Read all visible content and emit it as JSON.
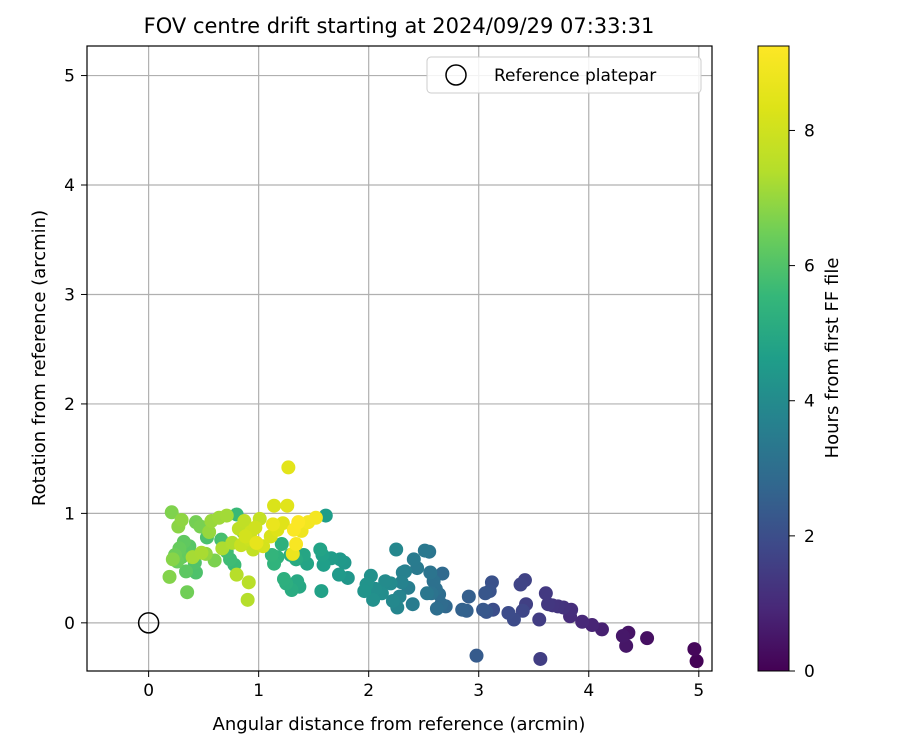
{
  "chart_data": {
    "type": "scatter",
    "title": "FOV centre drift starting at 2024/09/29 07:33:31",
    "xlabel": "Angular distance from reference (arcmin)",
    "ylabel": "Rotation from reference (arcmin)",
    "colorbar_label": "Hours from first FF file",
    "xlim": [
      -0.56,
      5.12
    ],
    "ylim": [
      -0.44,
      5.27
    ],
    "clim": [
      0,
      9.25
    ],
    "colormap": "viridis",
    "grid": true,
    "legend_position": "top-right",
    "x_ticks": [
      0,
      1,
      2,
      3,
      4,
      5
    ],
    "y_ticks": [
      0,
      1,
      2,
      3,
      4,
      5
    ],
    "colorbar_ticks": [
      0,
      2,
      4,
      6,
      8
    ],
    "reference_point": {
      "name": "Reference platepar",
      "x": 0,
      "y": 0,
      "marker": "open-circle"
    },
    "series": [
      {
        "points": [
          [
            4.98,
            -0.35,
            0.05
          ],
          [
            4.96,
            -0.24,
            0.15
          ],
          [
            4.53,
            -0.14,
            0.35
          ],
          [
            4.36,
            -0.09,
            0.45
          ],
          [
            4.34,
            -0.21,
            0.5
          ],
          [
            4.31,
            -0.12,
            0.55
          ],
          [
            4.12,
            -0.06,
            0.75
          ],
          [
            4.03,
            -0.02,
            0.85
          ],
          [
            3.94,
            0.01,
            0.95
          ],
          [
            3.83,
            0.06,
            1.05
          ],
          [
            3.84,
            0.12,
            1.1
          ],
          [
            3.77,
            0.14,
            1.2
          ],
          [
            3.72,
            0.15,
            1.25
          ],
          [
            3.67,
            0.16,
            1.3
          ],
          [
            3.63,
            0.17,
            1.35
          ],
          [
            3.61,
            0.27,
            1.4
          ],
          [
            3.55,
            0.03,
            1.5
          ],
          [
            3.56,
            -0.33,
            1.55
          ],
          [
            3.43,
            0.17,
            1.6
          ],
          [
            3.42,
            0.39,
            1.65
          ],
          [
            3.38,
            0.35,
            1.7
          ],
          [
            3.4,
            0.11,
            1.8
          ],
          [
            3.32,
            0.03,
            1.9
          ],
          [
            3.27,
            0.09,
            1.95
          ],
          [
            3.13,
            0.12,
            2.0
          ],
          [
            3.12,
            0.37,
            2.1
          ],
          [
            3.1,
            0.29,
            2.15
          ],
          [
            3.07,
            0.1,
            2.2
          ],
          [
            3.06,
            0.27,
            2.25
          ],
          [
            3.04,
            0.12,
            2.3
          ],
          [
            2.98,
            -0.3,
            2.4
          ],
          [
            2.91,
            0.24,
            2.5
          ],
          [
            2.89,
            0.11,
            2.55
          ],
          [
            2.85,
            0.12,
            2.6
          ],
          [
            2.7,
            0.15,
            2.8
          ],
          [
            2.67,
            0.45,
            2.85
          ],
          [
            2.66,
            0.17,
            2.9
          ],
          [
            2.64,
            0.26,
            2.95
          ],
          [
            2.62,
            0.13,
            3.0
          ],
          [
            2.61,
            0.31,
            3.05
          ],
          [
            2.59,
            0.38,
            3.1
          ],
          [
            2.57,
            0.27,
            3.15
          ],
          [
            2.56,
            0.46,
            3.2
          ],
          [
            2.55,
            0.65,
            3.25
          ],
          [
            2.53,
            0.27,
            3.3
          ],
          [
            2.51,
            0.66,
            3.35
          ],
          [
            2.44,
            0.5,
            3.4
          ],
          [
            2.41,
            0.58,
            3.45
          ],
          [
            2.4,
            0.17,
            3.5
          ],
          [
            2.36,
            0.32,
            3.55
          ],
          [
            2.33,
            0.47,
            3.6
          ],
          [
            2.31,
            0.46,
            3.65
          ],
          [
            2.3,
            0.37,
            3.7
          ],
          [
            2.28,
            0.24,
            3.75
          ],
          [
            2.26,
            0.14,
            3.8
          ],
          [
            2.25,
            0.67,
            3.85
          ],
          [
            2.22,
            0.2,
            3.9
          ],
          [
            2.2,
            0.36,
            3.95
          ],
          [
            2.15,
            0.38,
            4.0
          ],
          [
            2.12,
            0.27,
            4.05
          ],
          [
            2.06,
            0.31,
            4.1
          ],
          [
            2.04,
            0.21,
            4.15
          ],
          [
            2.02,
            0.43,
            4.2
          ],
          [
            1.98,
            0.35,
            4.25
          ],
          [
            1.96,
            0.29,
            4.3
          ],
          [
            1.81,
            0.41,
            4.35
          ],
          [
            1.78,
            0.55,
            4.4
          ],
          [
            1.74,
            0.58,
            4.45
          ],
          [
            1.73,
            0.44,
            4.5
          ],
          [
            1.66,
            0.59,
            4.55
          ],
          [
            1.61,
            0.98,
            4.6
          ],
          [
            1.59,
            0.53,
            4.65
          ],
          [
            1.58,
            0.62,
            4.7
          ],
          [
            1.57,
            0.29,
            4.75
          ],
          [
            1.56,
            0.67,
            4.8
          ],
          [
            1.44,
            0.54,
            4.85
          ],
          [
            1.41,
            0.62,
            4.9
          ],
          [
            1.37,
            0.33,
            4.95
          ],
          [
            1.35,
            0.38,
            5.0
          ],
          [
            1.34,
            0.58,
            5.05
          ],
          [
            1.3,
            0.3,
            5.1
          ],
          [
            1.29,
            0.62,
            5.15
          ],
          [
            1.25,
            0.36,
            5.2
          ],
          [
            1.23,
            0.4,
            5.25
          ],
          [
            1.21,
            0.72,
            5.3
          ],
          [
            1.17,
            0.6,
            5.35
          ],
          [
            1.14,
            0.54,
            5.4
          ],
          [
            1.12,
            0.62,
            5.45
          ],
          [
            0.89,
            0.73,
            5.5
          ],
          [
            0.86,
            0.83,
            5.55
          ],
          [
            0.8,
            0.99,
            5.6
          ],
          [
            0.78,
            0.53,
            5.65
          ],
          [
            0.74,
            0.58,
            5.7
          ],
          [
            0.71,
            0.65,
            5.75
          ],
          [
            0.69,
            0.69,
            5.8
          ],
          [
            0.66,
            0.76,
            5.85
          ],
          [
            0.53,
            0.78,
            5.9
          ],
          [
            0.43,
            0.46,
            5.95
          ],
          [
            0.42,
            0.55,
            6.0
          ],
          [
            0.4,
            0.62,
            6.05
          ],
          [
            0.37,
            0.7,
            6.1
          ],
          [
            0.35,
            0.66,
            6.15
          ],
          [
            0.34,
            0.47,
            6.2
          ],
          [
            0.32,
            0.74,
            6.25
          ],
          [
            0.3,
            0.6,
            6.3
          ],
          [
            0.28,
            0.68,
            6.35
          ],
          [
            0.26,
            0.56,
            6.4
          ],
          [
            0.24,
            0.62,
            6.45
          ],
          [
            0.35,
            0.28,
            6.5
          ],
          [
            0.43,
            0.92,
            6.55
          ],
          [
            0.47,
            0.88,
            6.6
          ],
          [
            0.6,
            0.57,
            6.65
          ],
          [
            0.21,
            1.01,
            6.7
          ],
          [
            0.19,
            0.42,
            6.75
          ],
          [
            0.22,
            0.58,
            6.8
          ],
          [
            0.27,
            0.88,
            6.85
          ],
          [
            0.3,
            0.94,
            6.9
          ],
          [
            0.52,
            0.63,
            6.95
          ],
          [
            0.55,
            0.83,
            7.0
          ],
          [
            0.57,
            0.93,
            7.05
          ],
          [
            0.64,
            0.96,
            7.1
          ],
          [
            0.71,
            0.98,
            7.15
          ],
          [
            0.4,
            0.6,
            7.2
          ],
          [
            0.48,
            0.64,
            7.25
          ],
          [
            0.67,
            0.68,
            7.3
          ],
          [
            0.76,
            0.73,
            7.35
          ],
          [
            0.9,
            0.21,
            7.4
          ],
          [
            0.8,
            0.44,
            7.45
          ],
          [
            0.91,
            0.37,
            7.5
          ],
          [
            0.82,
            0.86,
            7.6
          ],
          [
            0.87,
            0.93,
            7.65
          ],
          [
            0.95,
            0.67,
            7.7
          ],
          [
            1.01,
            0.95,
            7.75
          ],
          [
            0.84,
            0.71,
            7.85
          ],
          [
            0.92,
            0.76,
            7.9
          ],
          [
            0.93,
            0.83,
            7.95
          ],
          [
            0.97,
            0.87,
            8.0
          ],
          [
            0.88,
            0.79,
            8.1
          ],
          [
            1.04,
            0.7,
            8.15
          ],
          [
            1.11,
            0.79,
            8.2
          ],
          [
            1.14,
            1.07,
            8.25
          ],
          [
            1.17,
            0.85,
            8.35
          ],
          [
            1.22,
            0.91,
            8.4
          ],
          [
            1.26,
            1.07,
            8.45
          ],
          [
            1.27,
            1.42,
            8.5
          ],
          [
            0.98,
            0.73,
            8.6
          ],
          [
            1.13,
            0.9,
            8.7
          ],
          [
            1.31,
            0.63,
            8.75
          ],
          [
            1.39,
            0.84,
            8.85
          ],
          [
            1.45,
            0.92,
            8.95
          ],
          [
            1.52,
            0.96,
            9.0
          ],
          [
            1.34,
            0.72,
            9.1
          ],
          [
            1.32,
            0.85,
            9.15
          ],
          [
            1.36,
            0.92,
            9.2
          ]
        ]
      }
    ]
  }
}
